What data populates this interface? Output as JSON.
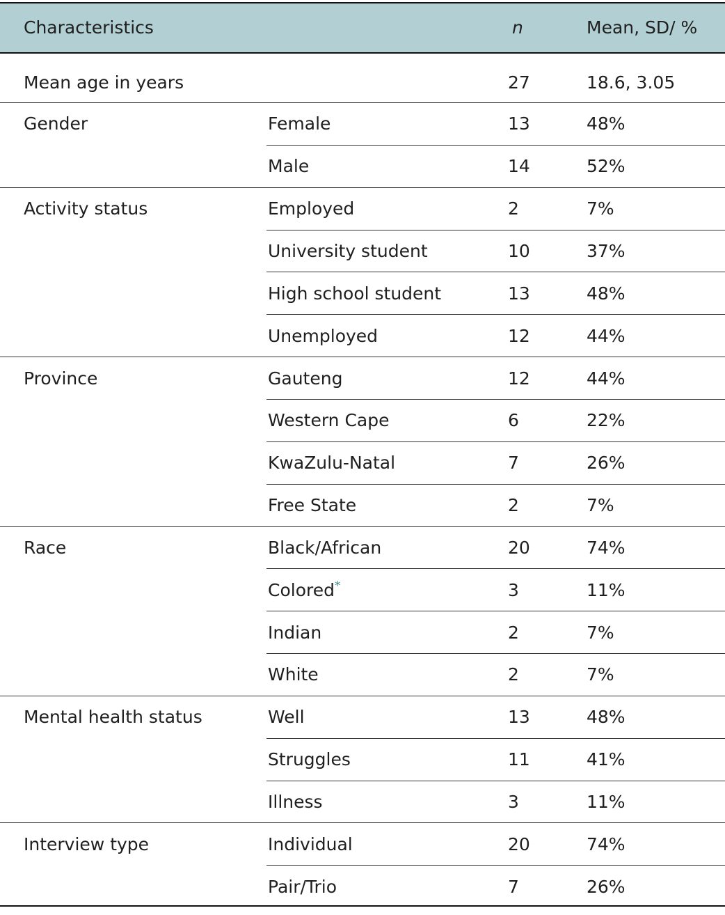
{
  "table": {
    "header": [
      "Characteristics",
      "n",
      "Mean, SD/ %"
    ],
    "summary": {
      "label": "Mean age in years",
      "n": 27,
      "value": "18.6, 3.05"
    },
    "groups": [
      {
        "label": "Gender",
        "rows": [
          {
            "label": "Female",
            "n": 13,
            "value": "48%"
          },
          {
            "label": "Male",
            "n": 14,
            "value": "52%"
          }
        ]
      },
      {
        "label": "Activity status",
        "rows": [
          {
            "label": "Employed",
            "n": 2,
            "value": "7%"
          },
          {
            "label": "University student",
            "n": 10,
            "value": "37%"
          },
          {
            "label": "High school student",
            "n": 13,
            "value": "48%"
          },
          {
            "label": "Unemployed",
            "n": 12,
            "value": "44%"
          }
        ]
      },
      {
        "label": "Province",
        "rows": [
          {
            "label": "Gauteng",
            "n": 12,
            "value": "44%"
          },
          {
            "label": "Western Cape",
            "n": 6,
            "value": "22%"
          },
          {
            "label": "KwaZulu-Natal",
            "n": 7,
            "value": "26%"
          },
          {
            "label": "Free State",
            "n": 2,
            "value": "7%"
          }
        ]
      },
      {
        "label": "Race",
        "rows": [
          {
            "label": "Black/African",
            "n": 20,
            "value": "74%"
          },
          {
            "label": "Colored",
            "note": "*",
            "n": 3,
            "value": "11%"
          },
          {
            "label": "Indian",
            "n": 2,
            "value": "7%"
          },
          {
            "label": "White",
            "n": 2,
            "value": "7%"
          }
        ]
      },
      {
        "label": "Mental health status",
        "rows": [
          {
            "label": "Well",
            "n": 13,
            "value": "48%"
          },
          {
            "label": "Struggles",
            "n": 11,
            "value": "41%"
          },
          {
            "label": "Illness",
            "n": 3,
            "value": "11%"
          }
        ]
      },
      {
        "label": "Interview type",
        "rows": [
          {
            "label": "Individual",
            "n": 20,
            "value": "74%"
          },
          {
            "label": "Pair/Trio",
            "n": 7,
            "value": "26%"
          }
        ]
      }
    ]
  }
}
